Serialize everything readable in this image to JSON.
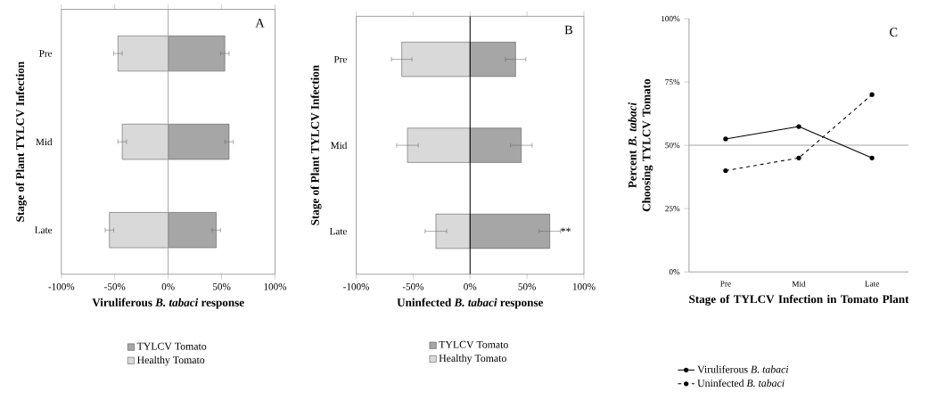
{
  "chart_data": [
    {
      "type": "bar",
      "orientation": "horizontal",
      "stacked": true,
      "categories": [
        "Pre",
        "Mid",
        "Late"
      ],
      "series": [
        {
          "name": "TYLCV Tomato",
          "color": "#a6a6a6",
          "values": [
            53,
            57,
            45
          ],
          "errors": [
            4,
            4,
            4
          ]
        },
        {
          "name": "Healthy Tomato",
          "color": "#d9d9d9",
          "values": [
            -47,
            -43,
            -55
          ],
          "errors": [
            4,
            4,
            4
          ]
        }
      ],
      "xlim": [
        -100,
        100
      ],
      "xticks": [
        {
          "value": -100,
          "label": "-100%"
        },
        {
          "value": -50,
          "label": "-50%"
        },
        {
          "value": 0,
          "label": "0%"
        },
        {
          "value": 50,
          "label": "50%"
        },
        {
          "value": 100,
          "label": "100%"
        }
      ],
      "xlabel": "Viruliferous *B. tabaci* response",
      "ylabel": "Stage of Plant TYLCV Infection",
      "legend": "bottom",
      "annotations": [
        "A"
      ],
      "ref_lines": [
        {
          "axis": "x",
          "value": 0,
          "color": "#a0a0a0"
        }
      ]
    },
    {
      "type": "bar",
      "orientation": "horizontal",
      "stacked": true,
      "categories": [
        "Pre",
        "Mid",
        "Late"
      ],
      "series": [
        {
          "name": "TYLCV Tomato",
          "color": "#a6a6a6",
          "values": [
            40,
            45,
            70
          ],
          "errors": [
            9,
            9.5,
            9.5
          ]
        },
        {
          "name": "Healthy Tomato",
          "color": "#d9d9d9",
          "values": [
            -60,
            -55,
            -30
          ],
          "errors": [
            9,
            9.5,
            9.5
          ]
        }
      ],
      "xlim": [
        -100,
        100
      ],
      "xticks": [
        {
          "value": -100,
          "label": "-100%"
        },
        {
          "value": -50,
          "label": "-50%"
        },
        {
          "value": 0,
          "label": "0%"
        },
        {
          "value": 50,
          "label": "50%"
        },
        {
          "value": 100,
          "label": "100%"
        }
      ],
      "xlabel": "Uninfected *B. tabaci* response",
      "ylabel": "Stage of Plant TYLCV Infection",
      "legend": "bottom",
      "annotations": [
        "B",
        "**"
      ],
      "ref_lines": [
        {
          "axis": "x",
          "value": 0,
          "color": "#000000"
        }
      ]
    },
    {
      "type": "line",
      "categories": [
        "Pre",
        "Mid",
        "Late"
      ],
      "marker": "circle",
      "series": [
        {
          "name": "Viruliferous *B. tabaci*",
          "color": "#000000",
          "line_style": "solid",
          "values": [
            52.5,
            57.4,
            45
          ]
        },
        {
          "name": "Uninfected  *B. tabaci*",
          "color": "#000000",
          "line_style": "dashed",
          "values": [
            40,
            45,
            70
          ]
        }
      ],
      "ylim": [
        0,
        100
      ],
      "yticks": [
        {
          "value": 0,
          "label": "0%"
        },
        {
          "value": 25,
          "label": "25%"
        },
        {
          "value": 50,
          "label": "50%"
        },
        {
          "value": 75,
          "label": "75%"
        },
        {
          "value": 100,
          "label": "100%"
        }
      ],
      "xlabel": "Stage of TYLCV Infection in Tomato Plant",
      "ylabel": "Percent *B. tabaci* Choosing TYLCV Tomato",
      "legend": "bottom",
      "annotations": [
        "C"
      ],
      "ref_lines": [
        {
          "axis": "y",
          "value": 50,
          "color": "#a6a6a6"
        }
      ]
    }
  ]
}
